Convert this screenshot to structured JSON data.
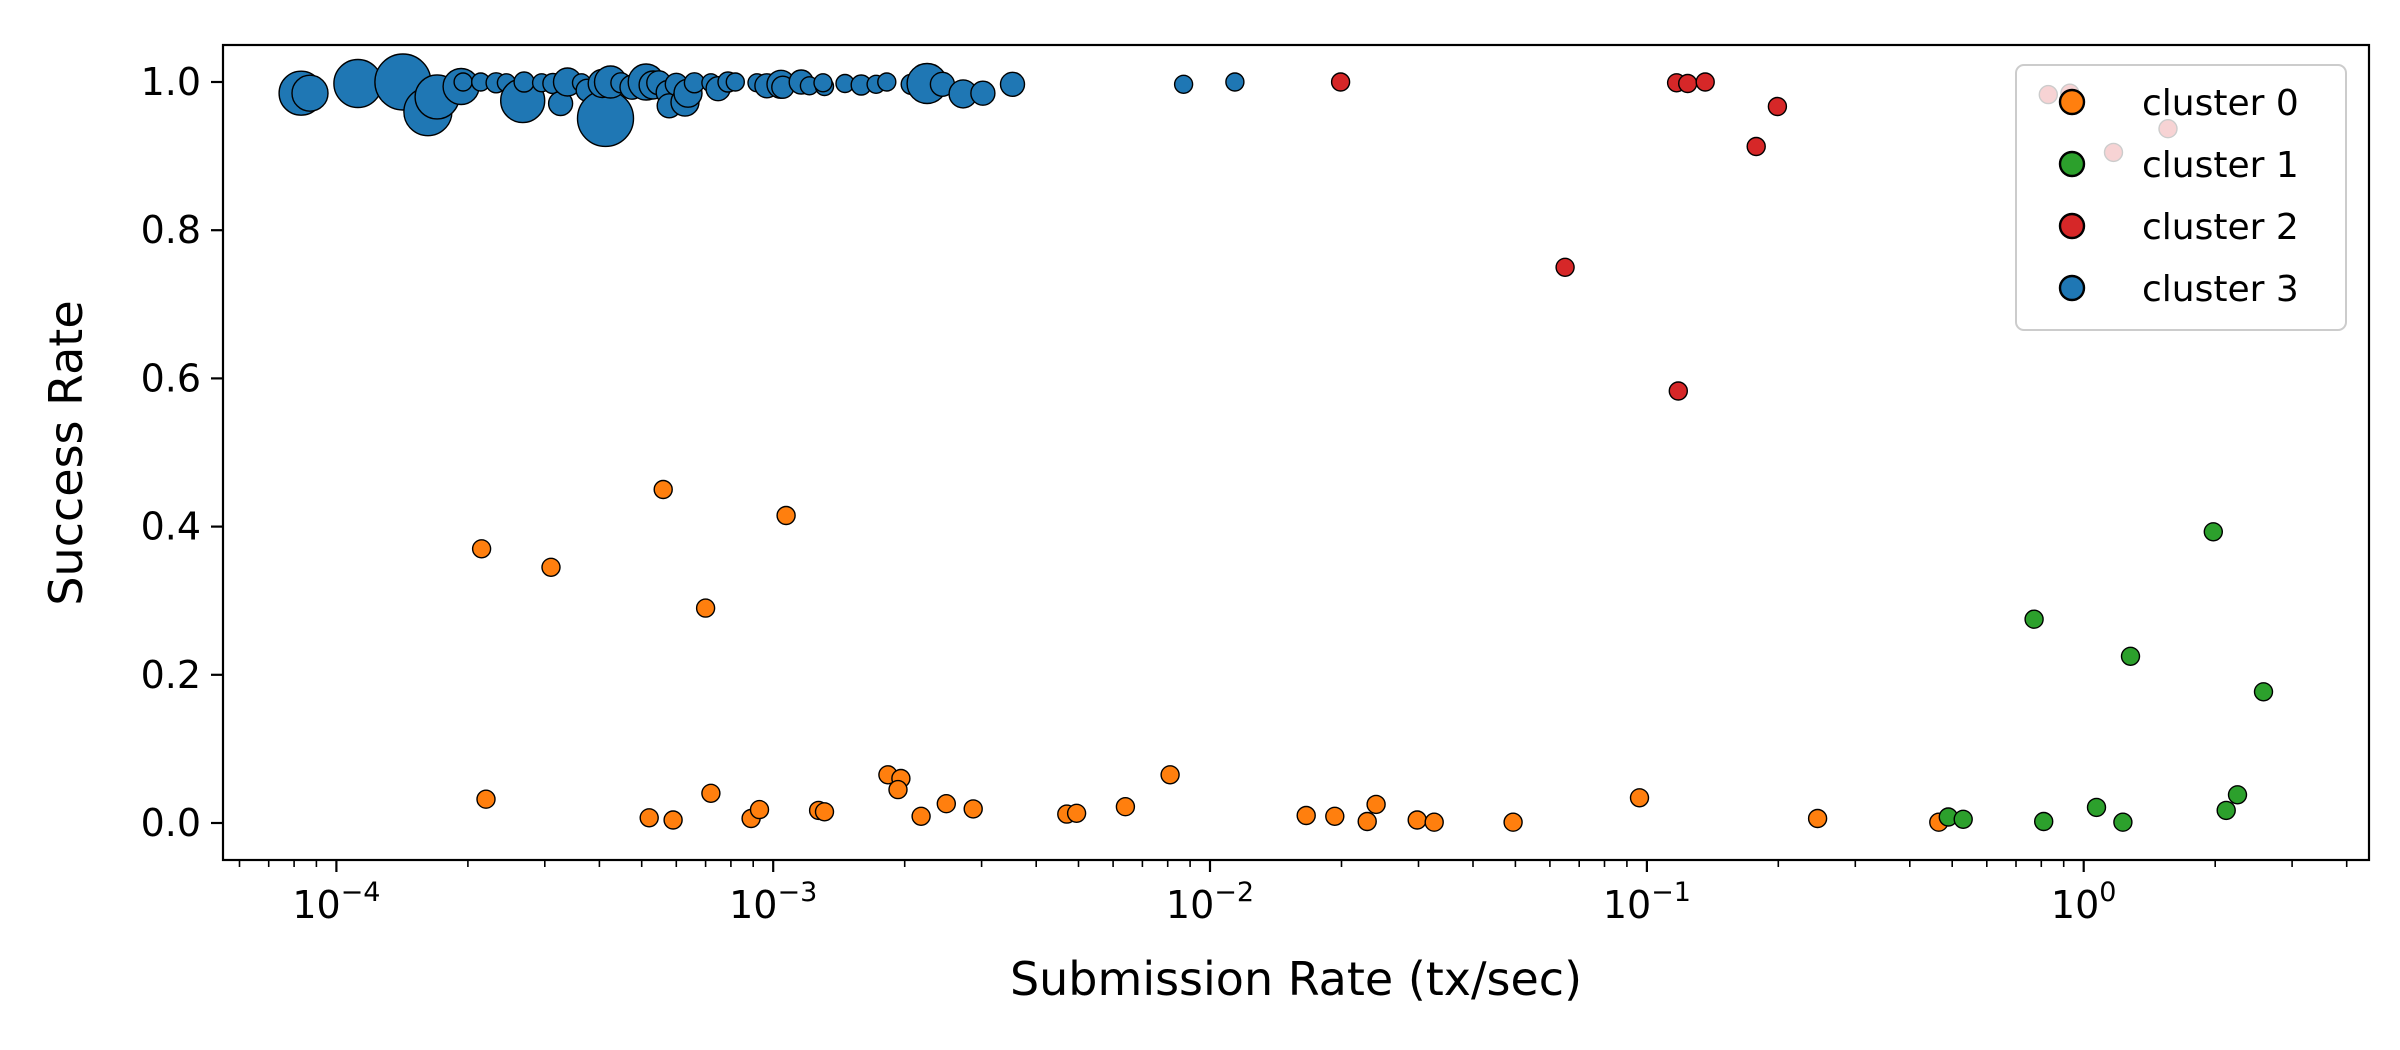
{
  "chart_data": {
    "type": "scatter",
    "title": "",
    "xlabel": "Submission Rate (tx/sec)",
    "ylabel": "Success Rate",
    "xscale": "log",
    "xlim": [
      5.5e-05,
      4.5
    ],
    "ylim": [
      -0.05,
      1.05
    ],
    "x_tick_labels": [
      {
        "value": 0.0001,
        "label": "10",
        "exp": "−4"
      },
      {
        "value": 0.001,
        "label": "10",
        "exp": "−3"
      },
      {
        "value": 0.01,
        "label": "10",
        "exp": "−2"
      },
      {
        "value": 0.1,
        "label": "10",
        "exp": "−1"
      },
      {
        "value": 1,
        "label": "10",
        "exp": "0"
      }
    ],
    "y_ticks": [
      {
        "value": 0.0,
        "label": "0.0"
      },
      {
        "value": 0.2,
        "label": "0.2"
      },
      {
        "value": 0.4,
        "label": "0.4"
      },
      {
        "value": 0.6,
        "label": "0.6"
      },
      {
        "value": 0.8,
        "label": "0.8"
      },
      {
        "value": 1.0,
        "label": "1.0"
      }
    ],
    "grid": false,
    "legend_position": "top-right",
    "series": [
      {
        "name": "cluster 0",
        "color": "#ff7f0e",
        "points": [
          [
            0.000215,
            0.37
          ],
          [
            0.00031,
            0.345
          ],
          [
            0.00056,
            0.45
          ],
          [
            0.00107,
            0.415
          ],
          [
            0.0007,
            0.29
          ],
          [
            0.00022,
            0.032
          ],
          [
            0.00052,
            0.007
          ],
          [
            0.00059,
            0.004
          ],
          [
            0.00072,
            0.04
          ],
          [
            0.00089,
            0.006
          ],
          [
            0.00093,
            0.018
          ],
          [
            0.00127,
            0.017
          ],
          [
            0.00131,
            0.015
          ],
          [
            0.00183,
            0.065
          ],
          [
            0.00196,
            0.06
          ],
          [
            0.00193,
            0.045
          ],
          [
            0.00218,
            0.009
          ],
          [
            0.00249,
            0.026
          ],
          [
            0.00287,
            0.019
          ],
          [
            0.0047,
            0.012
          ],
          [
            0.00495,
            0.013
          ],
          [
            0.0064,
            0.022
          ],
          [
            0.0081,
            0.065
          ],
          [
            0.0166,
            0.01
          ],
          [
            0.0193,
            0.009
          ],
          [
            0.0229,
            0.002
          ],
          [
            0.024,
            0.025
          ],
          [
            0.0298,
            0.004
          ],
          [
            0.0326,
            0.001
          ],
          [
            0.0494,
            0.001
          ],
          [
            0.0962,
            0.034
          ],
          [
            0.246,
            0.006
          ],
          [
            0.466,
            0.001
          ]
        ]
      },
      {
        "name": "cluster 1",
        "color": "#2ca02c",
        "points": [
          [
            0.49,
            0.008
          ],
          [
            0.53,
            0.005
          ],
          [
            0.77,
            0.275
          ],
          [
            0.81,
            0.002
          ],
          [
            1.07,
            0.021
          ],
          [
            1.23,
            0.001
          ],
          [
            1.28,
            0.225
          ],
          [
            1.98,
            0.393
          ],
          [
            2.12,
            0.017
          ],
          [
            2.25,
            0.038
          ],
          [
            2.58,
            0.177
          ]
        ]
      },
      {
        "name": "cluster 2",
        "color": "#d62728",
        "points": [
          [
            0.0199,
            1.0
          ],
          [
            0.065,
            0.75
          ],
          [
            0.117,
            0.999
          ],
          [
            0.124,
            0.998
          ],
          [
            0.136,
            1.0
          ],
          [
            0.118,
            0.583
          ],
          [
            0.178,
            0.913
          ],
          [
            0.199,
            0.967
          ],
          [
            0.83,
            0.983
          ],
          [
            0.93,
            0.985
          ],
          [
            1.17,
            0.905
          ],
          [
            1.56,
            0.937
          ]
        ]
      },
      {
        "name": "cluster 3",
        "color": "#1f77b4",
        "points": [
          [
            8.3e-05,
            0.985,
            22
          ],
          [
            8.7e-05,
            0.985,
            18
          ],
          [
            0.000112,
            0.998,
            24
          ],
          [
            0.000142,
            1.0,
            28
          ],
          [
            0.000162,
            0.96,
            24
          ],
          [
            0.00017,
            0.98,
            22
          ],
          [
            0.000193,
            0.994,
            18
          ],
          [
            0.000195,
            1.0,
            9
          ],
          [
            0.000214,
            1.0,
            9
          ],
          [
            0.000232,
            0.999,
            10
          ],
          [
            0.000245,
            0.999,
            9
          ],
          [
            0.000267,
            0.975,
            22
          ],
          [
            0.000269,
            1.0,
            10
          ],
          [
            0.000295,
            0.999,
            9
          ],
          [
            0.000313,
            0.998,
            10
          ],
          [
            0.000326,
            0.971,
            12
          ],
          [
            0.000338,
            1.0,
            14
          ],
          [
            0.000364,
            0.999,
            9
          ],
          [
            0.000375,
            0.989,
            11
          ],
          [
            0.000413,
            0.951,
            28
          ],
          [
            0.000406,
            0.998,
            14
          ],
          [
            0.000415,
            0.995,
            10
          ],
          [
            0.000424,
            1.0,
            16
          ],
          [
            0.000448,
            0.999,
            10
          ],
          [
            0.000475,
            0.993,
            12
          ],
          [
            0.000512,
            1.0,
            18
          ],
          [
            0.000531,
            0.996,
            14
          ],
          [
            0.000547,
            0.999,
            12
          ],
          [
            0.000575,
            0.986,
            12
          ],
          [
            0.000578,
            0.968,
            12
          ],
          [
            0.0006,
            0.997,
            11
          ],
          [
            0.000628,
            0.973,
            14
          ],
          [
            0.000638,
            0.985,
            14
          ],
          [
            0.00066,
            0.999,
            10
          ],
          [
            0.00072,
            0.999,
            9
          ],
          [
            0.000748,
            0.991,
            12
          ],
          [
            0.000788,
            1.0,
            10
          ],
          [
            0.000819,
            1.0,
            9
          ],
          [
            0.000918,
            0.999,
            9
          ],
          [
            0.000967,
            0.995,
            12
          ],
          [
            0.001042,
            0.997,
            14
          ],
          [
            0.001052,
            0.993,
            11
          ],
          [
            0.001159,
            1.0,
            12
          ],
          [
            0.00121,
            0.995,
            9
          ],
          [
            0.00131,
            0.994,
            9
          ],
          [
            0.0013,
            0.999,
            9
          ],
          [
            0.00146,
            0.998,
            9
          ],
          [
            0.00159,
            0.996,
            10
          ],
          [
            0.00172,
            0.997,
            9
          ],
          [
            0.00182,
            1.0,
            9
          ],
          [
            0.00207,
            0.997,
            10
          ],
          [
            0.00225,
            0.998,
            20
          ],
          [
            0.00244,
            0.997,
            12
          ],
          [
            0.00272,
            0.984,
            14
          ],
          [
            0.00302,
            0.985,
            12
          ],
          [
            0.00353,
            0.997,
            12
          ],
          [
            0.0087,
            0.997,
            9
          ],
          [
            0.0114,
            1.0,
            9
          ]
        ]
      }
    ]
  }
}
